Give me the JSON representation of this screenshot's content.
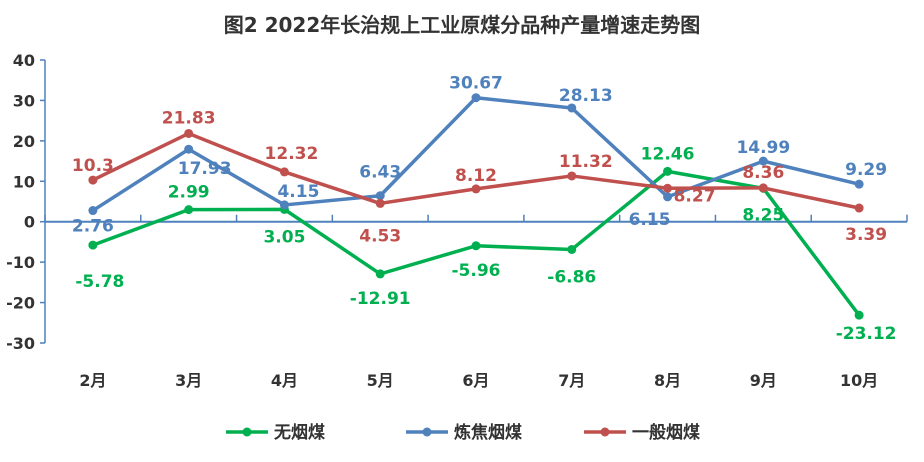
{
  "chart_data": {
    "type": "line",
    "title": "图2  2022年长治规上工业原煤分品种产量增速走势图",
    "xlabel": "",
    "ylabel": "",
    "categories": [
      "2月",
      "3月",
      "4月",
      "5月",
      "6月",
      "7月",
      "8月",
      "9月",
      "10月"
    ],
    "ylim": [
      -30,
      40
    ],
    "yticks": [
      40,
      30,
      20,
      10,
      0,
      -10,
      -20,
      -30
    ],
    "grid": false,
    "legend_position": "bottom",
    "series": [
      {
        "name": "无烟煤",
        "color": "#00b050",
        "values": [
          -5.78,
          2.99,
          3.05,
          -12.91,
          -5.96,
          -6.86,
          12.46,
          8.25,
          -23.12
        ]
      },
      {
        "name": "炼焦烟煤",
        "color": "#4f81bd",
        "values": [
          2.76,
          17.93,
          4.15,
          6.43,
          30.67,
          28.13,
          6.15,
          14.99,
          9.29
        ]
      },
      {
        "name": "一般烟煤",
        "color": "#c0504d",
        "values": [
          10.3,
          21.83,
          12.32,
          4.53,
          8.12,
          11.32,
          8.27,
          8.36,
          3.39
        ]
      }
    ]
  }
}
